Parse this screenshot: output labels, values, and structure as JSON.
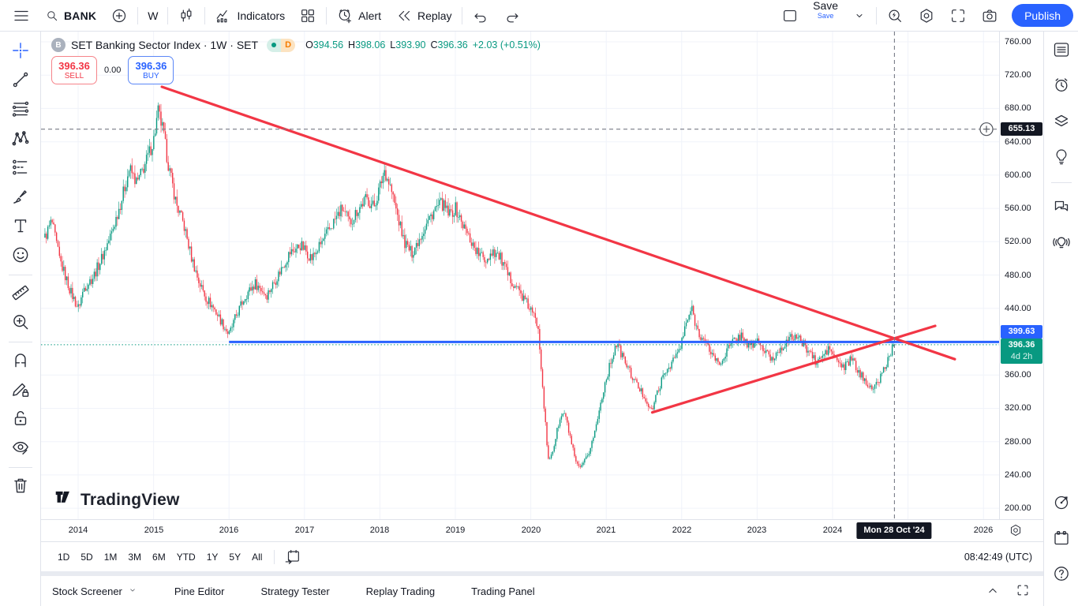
{
  "topbar": {
    "symbol": "BANK",
    "timeframe": "W",
    "indicators_label": "Indicators",
    "alert_label": "Alert",
    "replay_label": "Replay",
    "save_label": "Save",
    "save_sub_label": "Save",
    "publish_label": "Publish"
  },
  "legend": {
    "symbol_badge": "B",
    "title": "SET Banking Sector Index · 1W · SET",
    "market_status_icon": "green-dot",
    "interval_badge": "D",
    "ohlc": {
      "o_label": "O",
      "o": "394.56",
      "h_label": "H",
      "h": "398.06",
      "l_label": "L",
      "l": "393.90",
      "c_label": "C",
      "c": "396.36",
      "change": "+2.03 (+0.51%)"
    }
  },
  "trade": {
    "sell_price": "396.36",
    "sell_label": "SELL",
    "spread": "0.00",
    "buy_price": "396.36",
    "buy_label": "BUY"
  },
  "left_toolbar": {
    "groups": [
      [
        "crosshair",
        "trend-line",
        "fib-retracement",
        "xabcd-pattern",
        "forecast",
        "brush",
        "text",
        "emoji"
      ],
      [
        "measure",
        "zoom-in"
      ],
      [
        "magnet",
        "draw-lock",
        "lock-all",
        "hide-drawings"
      ],
      [
        "remove-drawings"
      ]
    ]
  },
  "right_sidebar": {
    "top": [
      "watchlist",
      "alerts",
      "layers",
      "ideas"
    ],
    "mid": [
      "chat",
      "streams"
    ],
    "bottom": [
      "target",
      "calendar",
      "help"
    ]
  },
  "price_axis": {
    "ticks": [
      760,
      720,
      680,
      640,
      600,
      560,
      520,
      480,
      440,
      360,
      320,
      280,
      240,
      200
    ],
    "crosshair_price": "655.13",
    "line_price": "399.63",
    "current_price": "396.36",
    "countdown": "4d 2h"
  },
  "time_axis": {
    "years": [
      2014,
      2015,
      2016,
      2017,
      2018,
      2019,
      2020,
      2021,
      2022,
      2023,
      2024,
      2026
    ],
    "crosshair_date": "Mon 28 Oct '24"
  },
  "range_toolbar": {
    "ranges": [
      "1D",
      "5D",
      "1M",
      "3M",
      "6M",
      "YTD",
      "1Y",
      "5Y",
      "All"
    ],
    "clock": "08:42:49 (UTC)"
  },
  "bottom_panel": {
    "tabs": [
      "Stock Screener",
      "Pine Editor",
      "Strategy Tester",
      "Replay Trading",
      "Trading Panel"
    ]
  },
  "watermark": {
    "label": "TradingView"
  },
  "colors": {
    "accent": "#2962ff",
    "up": "#089981",
    "down": "#f23645",
    "ink": "#131722",
    "orange_badge": "#f57c00",
    "grid": "#f0f3fa",
    "border": "#e0e3eb",
    "crosshair": "#787b86"
  },
  "chart_data": {
    "type": "candlestick",
    "symbol": "SET Banking Sector Index",
    "timeframe": "1W",
    "x_range_years": [
      2013.5,
      2026.7
    ],
    "y_range_price": [
      188,
      772
    ],
    "price_gridlines": [
      200,
      240,
      280,
      320,
      360,
      400,
      440,
      480,
      520,
      560,
      600,
      640,
      680,
      720,
      760
    ],
    "year_gridlines": [
      2014,
      2015,
      2016,
      2017,
      2018,
      2019,
      2020,
      2021,
      2022,
      2023,
      2024,
      2025,
      2026
    ],
    "last_candle": {
      "open": 394.56,
      "high": 398.06,
      "low": 393.9,
      "close": 396.36,
      "change": "+2.03",
      "change_pct": "+0.51%"
    },
    "levels": {
      "resistance_line": {
        "price": 399.63,
        "start_year": 2016.0,
        "color": "#2962ff"
      },
      "current_price_line": {
        "price": 396.36,
        "style": "dotted",
        "color": "#089981"
      }
    },
    "trendlines": [
      {
        "name": "descending-resistance",
        "from": [
          2015.11,
          706
        ],
        "to": [
          2025.62,
          379
        ],
        "color": "#f23645"
      },
      {
        "name": "ascending-support",
        "from": [
          2021.61,
          315
        ],
        "to": [
          2025.36,
          419
        ],
        "color": "#f23645"
      }
    ],
    "crosshair": {
      "price": 655.13,
      "t": 2024.82,
      "date_label": "Mon 28 Oct '24"
    },
    "series_anchors": [
      [
        2013.56,
        525
      ],
      [
        2013.65,
        545
      ],
      [
        2013.75,
        500
      ],
      [
        2013.9,
        460
      ],
      [
        2014,
        440
      ],
      [
        2014.08,
        465
      ],
      [
        2014.2,
        478
      ],
      [
        2014.32,
        502
      ],
      [
        2014.45,
        532
      ],
      [
        2014.58,
        572
      ],
      [
        2014.68,
        608
      ],
      [
        2014.78,
        590
      ],
      [
        2014.9,
        616
      ],
      [
        2015,
        642
      ],
      [
        2015.06,
        676
      ],
      [
        2015.12,
        655
      ],
      [
        2015.2,
        610
      ],
      [
        2015.3,
        566
      ],
      [
        2015.4,
        540
      ],
      [
        2015.5,
        502
      ],
      [
        2015.6,
        472
      ],
      [
        2015.7,
        452
      ],
      [
        2015.8,
        440
      ],
      [
        2015.9,
        424
      ],
      [
        2016,
        408
      ],
      [
        2016.1,
        432
      ],
      [
        2016.22,
        456
      ],
      [
        2016.35,
        470
      ],
      [
        2016.5,
        456
      ],
      [
        2016.65,
        480
      ],
      [
        2016.8,
        506
      ],
      [
        2016.95,
        516
      ],
      [
        2017.1,
        500
      ],
      [
        2017.25,
        522
      ],
      [
        2017.4,
        546
      ],
      [
        2017.5,
        560
      ],
      [
        2017.6,
        542
      ],
      [
        2017.7,
        558
      ],
      [
        2017.82,
        572
      ],
      [
        2017.92,
        562
      ],
      [
        2018,
        586
      ],
      [
        2018.06,
        606
      ],
      [
        2018.14,
        586
      ],
      [
        2018.22,
        556
      ],
      [
        2018.32,
        520
      ],
      [
        2018.42,
        506
      ],
      [
        2018.52,
        524
      ],
      [
        2018.62,
        542
      ],
      [
        2018.72,
        558
      ],
      [
        2018.82,
        566
      ],
      [
        2018.92,
        552
      ],
      [
        2019,
        560
      ],
      [
        2019.1,
        540
      ],
      [
        2019.2,
        522
      ],
      [
        2019.3,
        506
      ],
      [
        2019.4,
        498
      ],
      [
        2019.5,
        510
      ],
      [
        2019.6,
        500
      ],
      [
        2019.7,
        478
      ],
      [
        2019.8,
        468
      ],
      [
        2019.9,
        452
      ],
      [
        2020,
        438
      ],
      [
        2020.1,
        418
      ],
      [
        2020.17,
        330
      ],
      [
        2020.23,
        256
      ],
      [
        2020.3,
        272
      ],
      [
        2020.37,
        302
      ],
      [
        2020.44,
        316
      ],
      [
        2020.52,
        286
      ],
      [
        2020.6,
        252
      ],
      [
        2020.67,
        248
      ],
      [
        2020.76,
        264
      ],
      [
        2020.86,
        296
      ],
      [
        2020.96,
        342
      ],
      [
        2021.06,
        376
      ],
      [
        2021.13,
        398
      ],
      [
        2021.22,
        382
      ],
      [
        2021.32,
        362
      ],
      [
        2021.42,
        346
      ],
      [
        2021.52,
        332
      ],
      [
        2021.6,
        316
      ],
      [
        2021.7,
        346
      ],
      [
        2021.8,
        366
      ],
      [
        2021.9,
        380
      ],
      [
        2021.98,
        392
      ],
      [
        2022.06,
        422
      ],
      [
        2022.13,
        440
      ],
      [
        2022.2,
        416
      ],
      [
        2022.3,
        400
      ],
      [
        2022.4,
        386
      ],
      [
        2022.5,
        372
      ],
      [
        2022.6,
        390
      ],
      [
        2022.7,
        402
      ],
      [
        2022.8,
        408
      ],
      [
        2022.9,
        392
      ],
      [
        2023,
        402
      ],
      [
        2023.1,
        388
      ],
      [
        2023.2,
        378
      ],
      [
        2023.3,
        392
      ],
      [
        2023.4,
        400
      ],
      [
        2023.5,
        408
      ],
      [
        2023.6,
        398
      ],
      [
        2023.7,
        388
      ],
      [
        2023.78,
        374
      ],
      [
        2023.88,
        384
      ],
      [
        2023.96,
        392
      ],
      [
        2024.05,
        378
      ],
      [
        2024.15,
        368
      ],
      [
        2024.25,
        380
      ],
      [
        2024.35,
        362
      ],
      [
        2024.45,
        352
      ],
      [
        2024.55,
        342
      ],
      [
        2024.63,
        358
      ],
      [
        2024.71,
        372
      ],
      [
        2024.77,
        388
      ],
      [
        2024.82,
        396.36
      ]
    ]
  }
}
